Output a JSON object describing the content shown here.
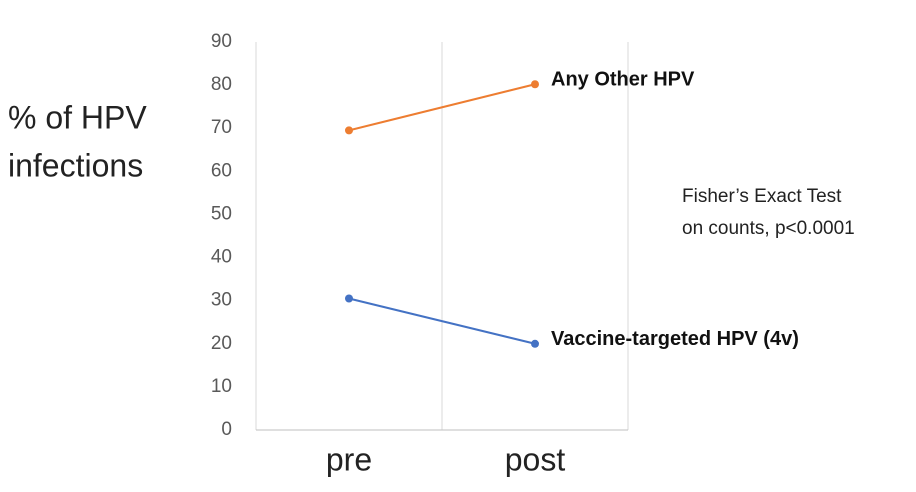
{
  "chart_data": {
    "type": "line",
    "ylabel": [
      "% of HPV",
      "infections"
    ],
    "categories": [
      "pre",
      "post"
    ],
    "series": [
      {
        "name": "Any Other HPV",
        "color": "#ed7d31",
        "values": [
          69.5,
          80.2
        ]
      },
      {
        "name": "Vaccine-targeted HPV (4v)",
        "color": "#4472c4",
        "values": [
          30.5,
          20
        ]
      }
    ],
    "ylim": [
      0,
      90
    ],
    "yticks": [
      0,
      10,
      20,
      30,
      40,
      50,
      60,
      70,
      80,
      90
    ],
    "annotation": [
      "Fisher’s Exact Test",
      "on counts, p<0.0001"
    ]
  }
}
